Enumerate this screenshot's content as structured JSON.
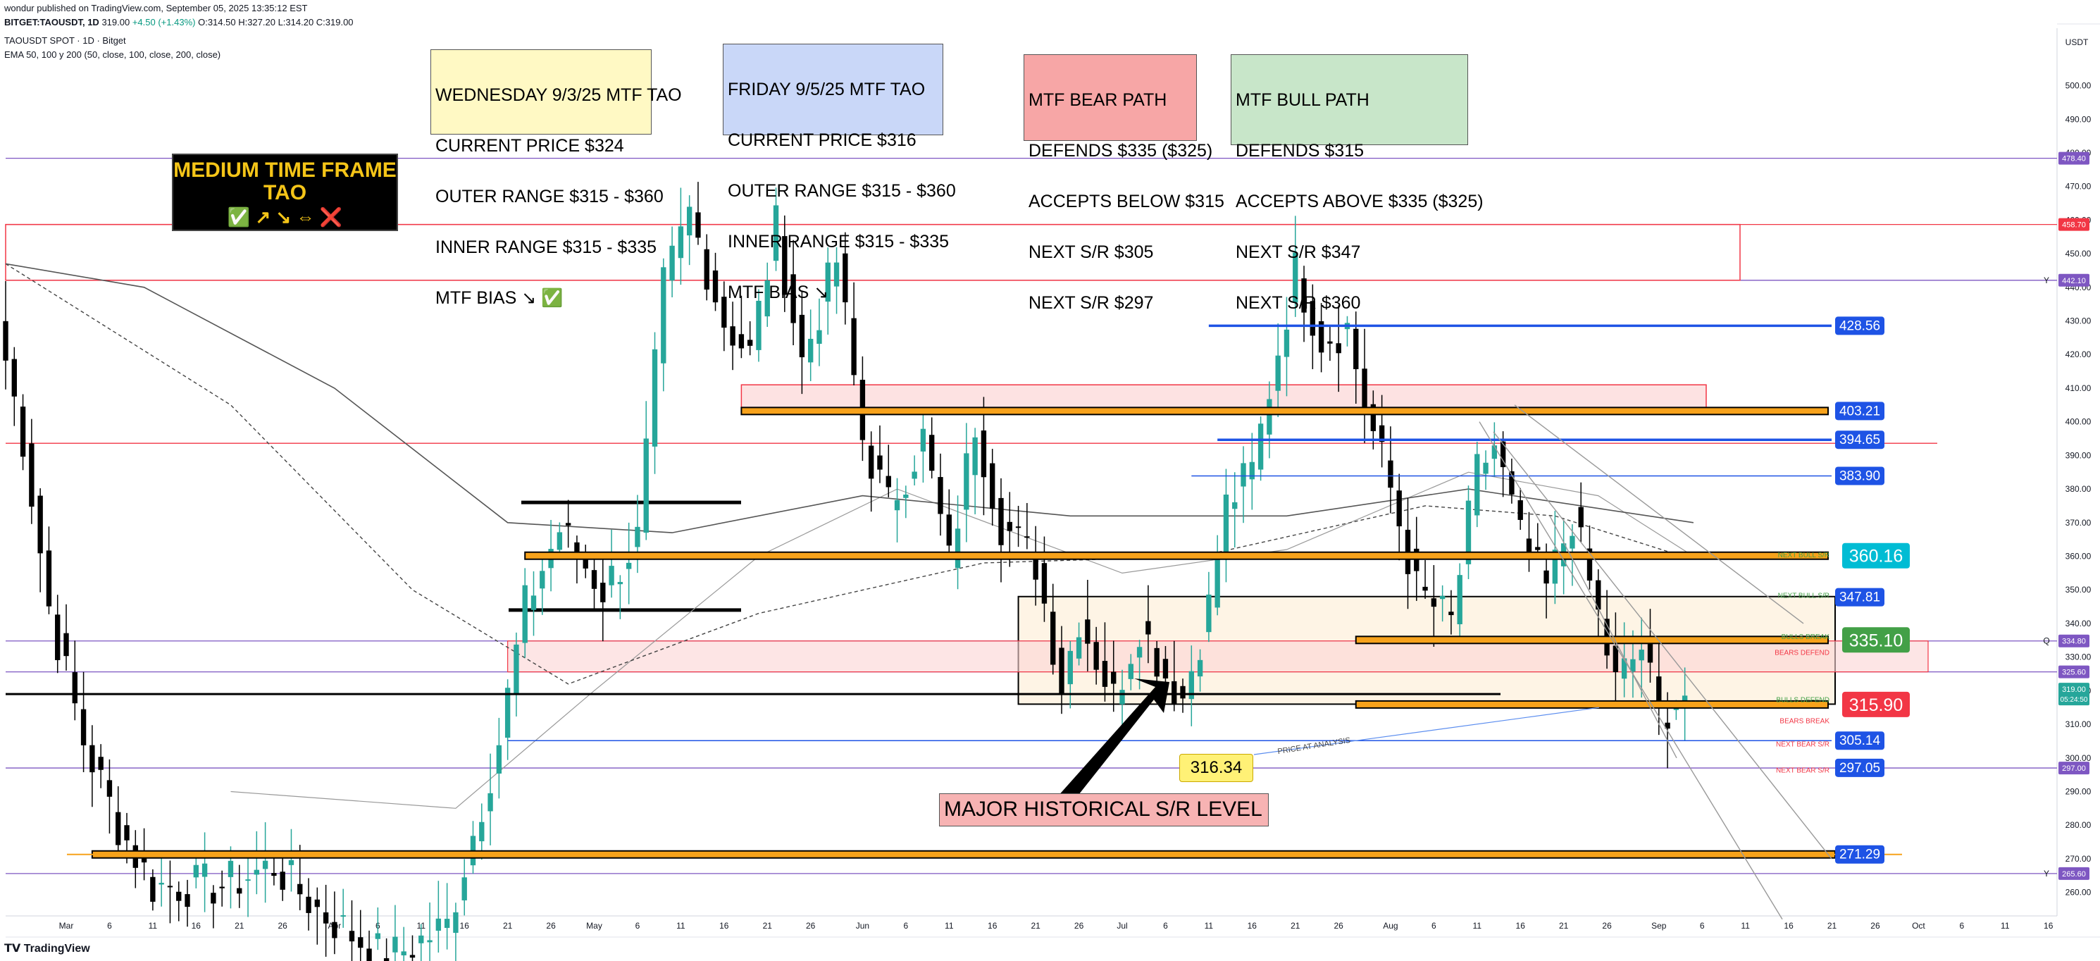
{
  "header": {
    "published": "wondur published on TradingView.com, September 05, 2025 13:35:12 EST",
    "symbol": "BITGET:TAOUSDT, 1D",
    "price": "319.00",
    "change": "+4.50 (+1.43%)",
    "ohlc": "O:314.50 H:327.20 L:314.20 C:319.00",
    "instrument": "TAOUSDT SPOT · 1D · Bitget",
    "indicator": "EMA 50, 100 y 200 (50, close, 100, close, 200, close)"
  },
  "notes": {
    "wed": [
      "WEDNESDAY 9/3/25 MTF TAO",
      "CURRENT PRICE $324",
      "OUTER RANGE $315 - $360",
      "INNER RANGE $315 - $335",
      "MTF BIAS ↘ ✅"
    ],
    "fri": [
      "FRIDAY 9/5/25 MTF TAO",
      "CURRENT PRICE $316",
      "OUTER RANGE $315 - $360",
      "INNER RANGE $315 - $335",
      "MTF BIAS ↘"
    ],
    "bear": [
      "MTF BEAR PATH",
      "DEFENDS $335 ($325)",
      "ACCEPTS BELOW $315",
      "NEXT S/R $305",
      "NEXT S/R $297"
    ],
    "bull": [
      "MTF BULL PATH",
      "DEFENDS $315",
      "ACCEPTS ABOVE $335 ($325)",
      "NEXT S/R $347",
      "NEXT S/R $360"
    ],
    "mtf_title": [
      "MEDIUM TIME FRAME",
      "TAO"
    ],
    "mtf_icons": "✅ ↗ ↘ ⇔ ❌",
    "major": "MAJOR HISTORICAL S/R LEVEL",
    "price_at_analysis": "PRICE AT ANALYSIS",
    "yellow_tag": "316.34"
  },
  "footer": "TradingView",
  "colors": {
    "up": "#26a69a",
    "down": "#000000",
    "orange": "#f7a21b",
    "blue_line": "#1e53e5",
    "red_line": "#f23645",
    "purple_line": "#7e57c2"
  },
  "chart_data": {
    "type": "candlestick",
    "currency": "USDT",
    "y_ticks": [
      260,
      270,
      280,
      290,
      300,
      310,
      320,
      330,
      340,
      350,
      360,
      370,
      380,
      390,
      400,
      410,
      420,
      430,
      440,
      450,
      460,
      470,
      480,
      490,
      500
    ],
    "y_range": [
      253,
      515
    ],
    "x_range": [
      "2025-02-22",
      "2025-10-17"
    ],
    "x_ticks": [
      {
        "date": "2025-03-01",
        "label": "Mar"
      },
      {
        "date": "2025-03-06",
        "label": "6"
      },
      {
        "date": "2025-03-11",
        "label": "11"
      },
      {
        "date": "2025-03-16",
        "label": "16"
      },
      {
        "date": "2025-03-21",
        "label": "21"
      },
      {
        "date": "2025-03-26",
        "label": "26"
      },
      {
        "date": "2025-04-01",
        "label": "Apr"
      },
      {
        "date": "2025-04-06",
        "label": "6"
      },
      {
        "date": "2025-04-11",
        "label": "11"
      },
      {
        "date": "2025-04-16",
        "label": "16"
      },
      {
        "date": "2025-04-21",
        "label": "21"
      },
      {
        "date": "2025-04-26",
        "label": "26"
      },
      {
        "date": "2025-05-01",
        "label": "May"
      },
      {
        "date": "2025-05-06",
        "label": "6"
      },
      {
        "date": "2025-05-11",
        "label": "11"
      },
      {
        "date": "2025-05-16",
        "label": "16"
      },
      {
        "date": "2025-05-21",
        "label": "21"
      },
      {
        "date": "2025-05-26",
        "label": "26"
      },
      {
        "date": "2025-06-01",
        "label": "Jun"
      },
      {
        "date": "2025-06-06",
        "label": "6"
      },
      {
        "date": "2025-06-11",
        "label": "11"
      },
      {
        "date": "2025-06-16",
        "label": "16"
      },
      {
        "date": "2025-06-21",
        "label": "21"
      },
      {
        "date": "2025-06-26",
        "label": "26"
      },
      {
        "date": "2025-07-01",
        "label": "Jul"
      },
      {
        "date": "2025-07-06",
        "label": "6"
      },
      {
        "date": "2025-07-11",
        "label": "11"
      },
      {
        "date": "2025-07-16",
        "label": "16"
      },
      {
        "date": "2025-07-21",
        "label": "21"
      },
      {
        "date": "2025-07-26",
        "label": "26"
      },
      {
        "date": "2025-08-01",
        "label": "Aug"
      },
      {
        "date": "2025-08-06",
        "label": "6"
      },
      {
        "date": "2025-08-11",
        "label": "11"
      },
      {
        "date": "2025-08-16",
        "label": "16"
      },
      {
        "date": "2025-08-21",
        "label": "21"
      },
      {
        "date": "2025-08-26",
        "label": "26"
      },
      {
        "date": "2025-09-01",
        "label": "Sep"
      },
      {
        "date": "2025-09-06",
        "label": "6"
      },
      {
        "date": "2025-09-11",
        "label": "11"
      },
      {
        "date": "2025-09-16",
        "label": "16"
      },
      {
        "date": "2025-09-21",
        "label": "21"
      },
      {
        "date": "2025-09-26",
        "label": "26"
      },
      {
        "date": "2025-10-01",
        "label": "Oct"
      },
      {
        "date": "2025-10-06",
        "label": "6"
      },
      {
        "date": "2025-10-11",
        "label": "11"
      },
      {
        "date": "2025-10-16",
        "label": "16"
      }
    ],
    "ohlc_keypoints": [
      {
        "date": "2025-02-22",
        "close": 430
      },
      {
        "date": "2025-02-25",
        "close": 395
      },
      {
        "date": "2025-02-28",
        "close": 345
      },
      {
        "date": "2025-03-04",
        "close": 305
      },
      {
        "date": "2025-03-08",
        "close": 280
      },
      {
        "date": "2025-03-12",
        "close": 262
      },
      {
        "date": "2025-03-20",
        "close": 262
      },
      {
        "date": "2025-03-26",
        "close": 268
      },
      {
        "date": "2025-03-31",
        "close": 255
      },
      {
        "date": "2025-04-08",
        "close": 240
      },
      {
        "date": "2025-04-15",
        "close": 250
      },
      {
        "date": "2025-04-21",
        "close": 305
      },
      {
        "date": "2025-04-24",
        "close": 345
      },
      {
        "date": "2025-04-28",
        "close": 368
      },
      {
        "date": "2025-05-03",
        "close": 350
      },
      {
        "date": "2025-05-07",
        "close": 365
      },
      {
        "date": "2025-05-10",
        "close": 440
      },
      {
        "date": "2025-05-13",
        "close": 462
      },
      {
        "date": "2025-05-17",
        "close": 430
      },
      {
        "date": "2025-05-20",
        "close": 420
      },
      {
        "date": "2025-05-23",
        "close": 458
      },
      {
        "date": "2025-05-26",
        "close": 418
      },
      {
        "date": "2025-05-30",
        "close": 448
      },
      {
        "date": "2025-06-02",
        "close": 395
      },
      {
        "date": "2025-06-05",
        "close": 375
      },
      {
        "date": "2025-06-09",
        "close": 395
      },
      {
        "date": "2025-06-12",
        "close": 358
      },
      {
        "date": "2025-06-15",
        "close": 400
      },
      {
        "date": "2025-06-18",
        "close": 370
      },
      {
        "date": "2025-06-22",
        "close": 358
      },
      {
        "date": "2025-06-25",
        "close": 322
      },
      {
        "date": "2025-06-27",
        "close": 342
      },
      {
        "date": "2025-07-01",
        "close": 318
      },
      {
        "date": "2025-07-04",
        "close": 340
      },
      {
        "date": "2025-07-07",
        "close": 325
      },
      {
        "date": "2025-07-09",
        "close": 318
      },
      {
        "date": "2025-07-12",
        "close": 345
      },
      {
        "date": "2025-07-14",
        "close": 375
      },
      {
        "date": "2025-07-17",
        "close": 385
      },
      {
        "date": "2025-07-19",
        "close": 410
      },
      {
        "date": "2025-07-22",
        "close": 445
      },
      {
        "date": "2025-07-25",
        "close": 425
      },
      {
        "date": "2025-07-28",
        "close": 428
      },
      {
        "date": "2025-07-30",
        "close": 405
      },
      {
        "date": "2025-08-02",
        "close": 380
      },
      {
        "date": "2025-08-05",
        "close": 350
      },
      {
        "date": "2025-08-09",
        "close": 340
      },
      {
        "date": "2025-08-12",
        "close": 385
      },
      {
        "date": "2025-08-14",
        "close": 393
      },
      {
        "date": "2025-08-17",
        "close": 365
      },
      {
        "date": "2025-08-20",
        "close": 350
      },
      {
        "date": "2025-08-23",
        "close": 372
      },
      {
        "date": "2025-08-26",
        "close": 342
      },
      {
        "date": "2025-08-28",
        "close": 322
      },
      {
        "date": "2025-08-31",
        "close": 333
      },
      {
        "date": "2025-09-02",
        "close": 313
      },
      {
        "date": "2025-09-05",
        "close": 319
      }
    ],
    "ema": [
      {
        "name": "EMA 50",
        "style": "solid-gray",
        "points": [
          {
            "date": "2025-03-20",
            "value": 290
          },
          {
            "date": "2025-04-15",
            "value": 285
          },
          {
            "date": "2025-05-01",
            "value": 320
          },
          {
            "date": "2025-05-20",
            "value": 360
          },
          {
            "date": "2025-06-05",
            "value": 380
          },
          {
            "date": "2025-07-01",
            "value": 355
          },
          {
            "date": "2025-07-20",
            "value": 362
          },
          {
            "date": "2025-08-10",
            "value": 385
          },
          {
            "date": "2025-08-25",
            "value": 378
          },
          {
            "date": "2025-09-05",
            "value": 360
          }
        ]
      },
      {
        "name": "EMA 100",
        "style": "dashed",
        "points": [
          {
            "date": "2025-02-22",
            "value": 447
          },
          {
            "date": "2025-03-20",
            "value": 405
          },
          {
            "date": "2025-04-10",
            "value": 350
          },
          {
            "date": "2025-04-28",
            "value": 322
          },
          {
            "date": "2025-05-20",
            "value": 343
          },
          {
            "date": "2025-06-15",
            "value": 358
          },
          {
            "date": "2025-07-10",
            "value": 360
          },
          {
            "date": "2025-08-05",
            "value": 375
          },
          {
            "date": "2025-08-20",
            "value": 372
          },
          {
            "date": "2025-09-05",
            "value": 359
          }
        ]
      },
      {
        "name": "EMA 200",
        "style": "solid-dark",
        "points": [
          {
            "date": "2025-02-22",
            "value": 447
          },
          {
            "date": "2025-03-10",
            "value": 440
          },
          {
            "date": "2025-04-01",
            "value": 410
          },
          {
            "date": "2025-04-21",
            "value": 370
          },
          {
            "date": "2025-05-10",
            "value": 367
          },
          {
            "date": "2025-06-01",
            "value": 378
          },
          {
            "date": "2025-06-25",
            "value": 372
          },
          {
            "date": "2025-07-20",
            "value": 372
          },
          {
            "date": "2025-08-10",
            "value": 380
          },
          {
            "date": "2025-09-05",
            "value": 370
          }
        ]
      }
    ],
    "levels": [
      {
        "value": 478.4,
        "color": "#7e57c2",
        "tag": "478.40"
      },
      {
        "value": 458.7,
        "color": "#f23645",
        "tag": "458.70"
      },
      {
        "value": 442.1,
        "color": "#7e57c2",
        "tag": "442.10"
      },
      {
        "value": 393.6,
        "color": "#f23645",
        "tag": ""
      },
      {
        "value": 334.8,
        "color": "#7e57c2",
        "tag": "334.80"
      },
      {
        "value": 325.6,
        "color": "#7e57c2",
        "tag": "325.60"
      },
      {
        "value": 297.0,
        "color": "#7e57c2",
        "tag": "297.00"
      },
      {
        "value": 265.6,
        "color": "#7e57c2",
        "tag": "265.60"
      }
    ],
    "sr_zones": [
      {
        "from": "2025-05-18",
        "to": "2025-09-28",
        "value": 403.21
      },
      {
        "from": "2025-04-23",
        "to": "2025-09-28",
        "value": 360.16
      },
      {
        "from": "2025-07-28",
        "to": "2025-09-28",
        "value": 335.1
      },
      {
        "from": "2025-07-28",
        "to": "2025-09-28",
        "value": 315.9
      },
      {
        "from": "2025-03-04",
        "to": "2025-10-01",
        "value": 271.29
      }
    ],
    "blue_levels": [
      {
        "from": "2025-07-11",
        "to": "2025-09-30",
        "value": 428.56
      },
      {
        "from": "2025-07-12",
        "to": "2025-09-30",
        "value": 394.65
      },
      {
        "from": "2025-07-09",
        "to": "2025-09-30",
        "value": 383.9
      },
      {
        "from": "2025-04-21",
        "to": "2025-09-30",
        "value": 305.14
      }
    ],
    "right_labels": [
      {
        "value": 428.56,
        "text": "428.56",
        "color": "#1e53e5"
      },
      {
        "value": 403.21,
        "text": "403.21",
        "color": "#1e53e5"
      },
      {
        "value": 394.65,
        "text": "394.65",
        "color": "#1e53e5"
      },
      {
        "value": 383.9,
        "text": "383.90",
        "color": "#1e53e5"
      },
      {
        "value": 360.16,
        "text": "360.16",
        "color": "#00bcd4"
      },
      {
        "value": 347.81,
        "text": "347.81",
        "color": "#1e53e5"
      },
      {
        "value": 335.1,
        "text": "335.10",
        "color": "#43a047"
      },
      {
        "value": 315.9,
        "text": "315.90",
        "color": "#f23645"
      },
      {
        "value": 305.14,
        "text": "305.14",
        "color": "#1e53e5"
      },
      {
        "value": 297.05,
        "text": "297.05",
        "color": "#1e53e5"
      },
      {
        "value": 271.29,
        "text": "271.29",
        "color": "#1e53e5"
      }
    ],
    "small_labels": [
      {
        "value": 360.5,
        "text": "NEXT BULL S/R",
        "color": "#43a047"
      },
      {
        "value": 348.5,
        "text": "NEXT BULL S/R",
        "color": "#43a047"
      },
      {
        "value": 336.2,
        "text": "BULLS BREAK",
        "color": "#43a047"
      },
      {
        "value": 331.5,
        "text": "BEARS DEFEND",
        "color": "#f23645"
      },
      {
        "value": 317.5,
        "text": "BULLS DEFEND",
        "color": "#43a047"
      },
      {
        "value": 311.2,
        "text": "BEARS BREAK",
        "color": "#f23645"
      },
      {
        "value": 304.2,
        "text": "NEXT BEAR S/R",
        "color": "#f23645"
      },
      {
        "value": 296.5,
        "text": "NEXT BEAR S/R",
        "color": "#f23645"
      }
    ],
    "axis_tags": [
      {
        "value": 319.0,
        "lines": [
          "319.00",
          "05:24:50"
        ],
        "color": "#26a69a"
      }
    ],
    "edge_letters": [
      {
        "value": 442.1,
        "text": "Y"
      },
      {
        "value": 334.8,
        "text": "Q"
      },
      {
        "value": 265.6,
        "text": "Y"
      }
    ]
  }
}
